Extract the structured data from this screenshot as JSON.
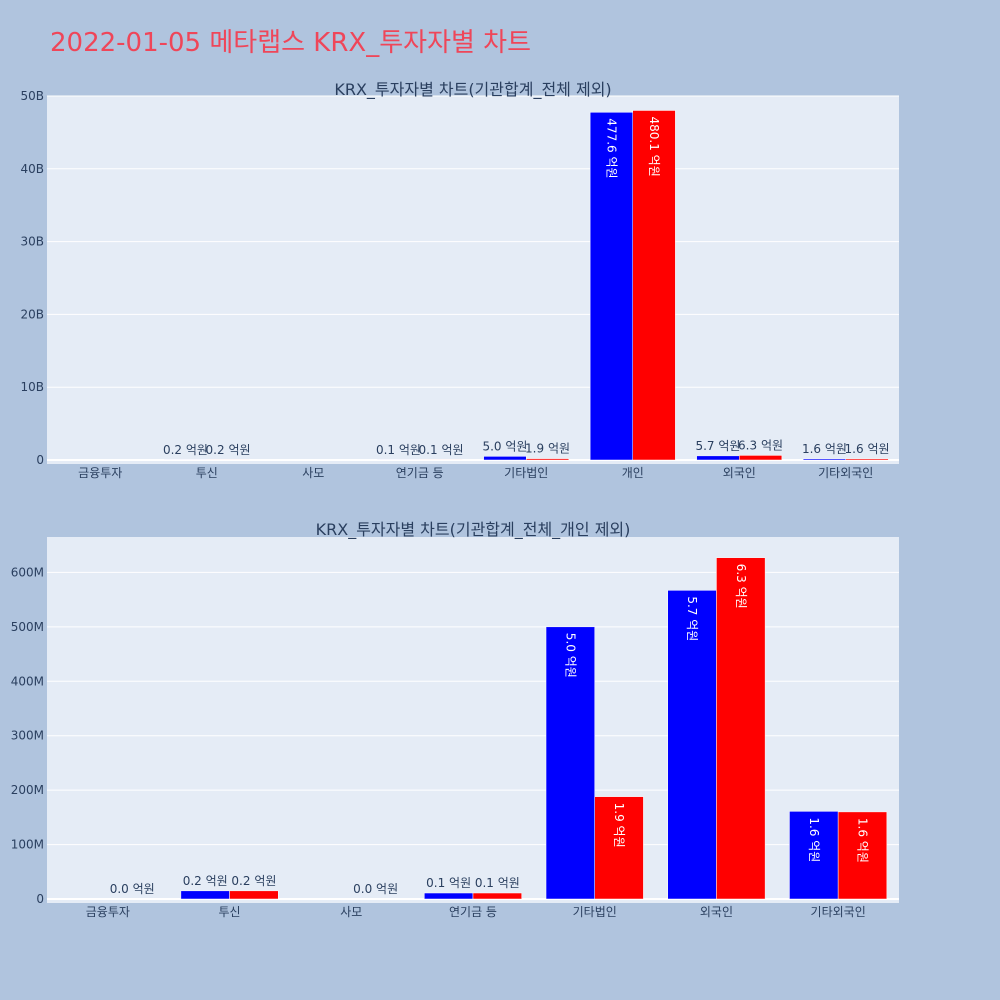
{
  "page": {
    "title": "2022-01-05 메타랩스 KRX_투자자별 차트"
  },
  "colors": {
    "background": "#b0c4de",
    "plot_bg": "#e5ecf6",
    "title_color": "#ef4659",
    "series_a": "#0000ff",
    "series_b": "#ff0000",
    "text": "#2a3f5f"
  },
  "chart_data": [
    {
      "type": "bar",
      "title": "KRX_투자자별 차트(기관합계_전체 제외)",
      "categories": [
        "금융투자",
        "투신",
        "사모",
        "연기금 등",
        "기타법인",
        "개인",
        "외국인",
        "기타외국인"
      ],
      "series": [
        {
          "color": "#0000ff",
          "values": [
            0,
            20000000,
            0,
            10000000,
            500000000,
            47760000000,
            570000000,
            160000000
          ]
        },
        {
          "color": "#ff0000",
          "values": [
            0,
            20000000,
            0,
            10000000,
            190000000,
            48010000000,
            630000000,
            160000000
          ]
        }
      ],
      "labels": [
        [
          "",
          "0.2 억원",
          "",
          "0.1 억원",
          "5.0 억원",
          "477.6 억원",
          "5.7 억원",
          "1.6 억원"
        ],
        [
          "",
          "0.2 억원",
          "",
          "0.1 억원",
          "1.9 억원",
          "480.1 억원",
          "6.3 억원",
          "1.6 억원"
        ]
      ],
      "y_ticks": [
        0,
        10000000000,
        20000000000,
        30000000000,
        40000000000,
        50000000000
      ],
      "y_tick_labels": [
        "0",
        "10B",
        "20B",
        "30B",
        "40B",
        "50B"
      ],
      "ylim": [
        0,
        50000000000
      ],
      "grid": true
    },
    {
      "type": "bar",
      "title": "KRX_투자자별 차트(기관합계_전체_개인 제외)",
      "categories": [
        "금융투자",
        "투신",
        "사모",
        "연기금 등",
        "기타법인",
        "외국인",
        "기타외국인"
      ],
      "series": [
        {
          "color": "#0000ff",
          "values": [
            0,
            15000000,
            0,
            11000000,
            500000000,
            567000000,
            161000000
          ]
        },
        {
          "color": "#ff0000",
          "values": [
            0,
            15000000,
            0,
            11000000,
            188000000,
            627000000,
            160000000
          ]
        }
      ],
      "labels": [
        [
          "",
          "0.2 억원",
          "",
          "0.1 억원",
          "5.0 억원",
          "5.7 억원",
          "1.6 억원"
        ],
        [
          "0.0 억원",
          "0.2 억원",
          "0.0 억원",
          "0.1 억원",
          "1.9 억원",
          "6.3 억원",
          "1.6 억원"
        ]
      ],
      "y_ticks": [
        0,
        100000000,
        200000000,
        300000000,
        400000000,
        500000000,
        600000000
      ],
      "y_tick_labels": [
        "0",
        "100M",
        "200M",
        "300M",
        "400M",
        "500M",
        "600M"
      ],
      "ylim": [
        0,
        665000000
      ],
      "grid": true
    }
  ]
}
